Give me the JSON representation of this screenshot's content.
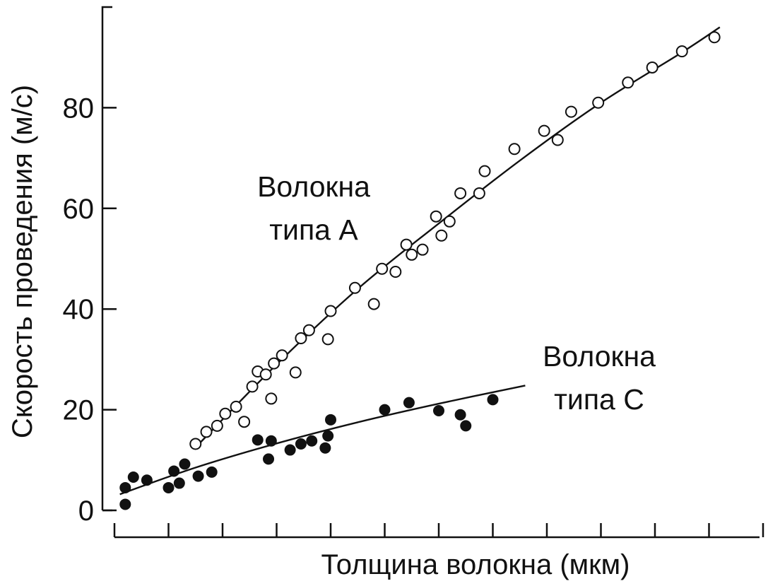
{
  "chart_data": {
    "type": "scatter",
    "title": "",
    "xlabel": "Толщина волокна (мкм)",
    "ylabel": "Скорость проведения (м/с)",
    "ylim": [
      0,
      100
    ],
    "xlim": [
      0,
      12
    ],
    "x_ticks_count": 12,
    "x_tick_labels_shown": false,
    "y_ticks": [
      0,
      20,
      40,
      60,
      80
    ],
    "y_tick_labels": [
      "0",
      "20",
      "40",
      "60",
      "80"
    ],
    "grid": false,
    "legend": "none",
    "annotations": [
      {
        "lines": [
          "Волокна",
          "типа А"
        ],
        "series": "A"
      },
      {
        "lines": [
          "Волокна",
          "типа С"
        ],
        "series": "C"
      }
    ],
    "series": [
      {
        "id": "A",
        "marker": "open-circle",
        "color": "#111111",
        "points": [
          [
            1.5,
            13.2
          ],
          [
            1.7,
            15.6
          ],
          [
            1.9,
            16.8
          ],
          [
            2.05,
            19.2
          ],
          [
            2.25,
            20.6
          ],
          [
            2.4,
            17.6
          ],
          [
            2.55,
            24.6
          ],
          [
            2.65,
            27.6
          ],
          [
            2.8,
            27.0
          ],
          [
            2.9,
            22.2
          ],
          [
            2.95,
            29.2
          ],
          [
            3.1,
            30.8
          ],
          [
            3.35,
            27.4
          ],
          [
            3.45,
            34.2
          ],
          [
            3.6,
            35.8
          ],
          [
            3.95,
            34.0
          ],
          [
            4.0,
            39.6
          ],
          [
            4.45,
            44.2
          ],
          [
            4.8,
            41.0
          ],
          [
            4.95,
            48.0
          ],
          [
            5.2,
            47.4
          ],
          [
            5.4,
            52.8
          ],
          [
            5.5,
            50.8
          ],
          [
            5.7,
            51.8
          ],
          [
            5.95,
            58.4
          ],
          [
            6.05,
            54.6
          ],
          [
            6.2,
            57.4
          ],
          [
            6.4,
            63.0
          ],
          [
            6.75,
            63.0
          ],
          [
            6.85,
            67.4
          ],
          [
            7.4,
            71.8
          ],
          [
            7.95,
            75.4
          ],
          [
            8.2,
            73.6
          ],
          [
            8.45,
            79.2
          ],
          [
            8.95,
            81.0
          ],
          [
            9.5,
            85.0
          ],
          [
            9.95,
            88.0
          ],
          [
            10.5,
            91.2
          ],
          [
            11.1,
            94.0
          ]
        ],
        "fit": [
          [
            1.5,
            12.5
          ],
          [
            3.0,
            29.0
          ],
          [
            4.5,
            44.0
          ],
          [
            6.0,
            57.0
          ],
          [
            7.5,
            69.5
          ],
          [
            9.0,
            81.0
          ],
          [
            10.5,
            91.0
          ],
          [
            11.2,
            96.0
          ]
        ]
      },
      {
        "id": "C",
        "marker": "filled-circle",
        "color": "#111111",
        "points": [
          [
            0.2,
            4.5
          ],
          [
            0.2,
            1.2
          ],
          [
            0.35,
            6.6
          ],
          [
            0.6,
            6.0
          ],
          [
            1.0,
            4.5
          ],
          [
            1.1,
            7.8
          ],
          [
            1.2,
            5.4
          ],
          [
            1.3,
            9.2
          ],
          [
            1.55,
            6.8
          ],
          [
            1.8,
            7.6
          ],
          [
            2.65,
            14.0
          ],
          [
            2.85,
            10.2
          ],
          [
            2.9,
            13.8
          ],
          [
            3.25,
            12.0
          ],
          [
            3.45,
            13.2
          ],
          [
            3.65,
            13.8
          ],
          [
            3.9,
            12.4
          ],
          [
            3.95,
            14.8
          ],
          [
            4.0,
            18.0
          ],
          [
            5.0,
            20.0
          ],
          [
            5.45,
            21.4
          ],
          [
            6.0,
            19.8
          ],
          [
            6.4,
            19.0
          ],
          [
            6.5,
            16.8
          ],
          [
            7.0,
            22.0
          ]
        ],
        "fit": [
          [
            0.1,
            3.2
          ],
          [
            1.5,
            8.5
          ],
          [
            3.0,
            13.3
          ],
          [
            4.5,
            17.5
          ],
          [
            6.0,
            21.2
          ],
          [
            7.6,
            24.8
          ]
        ]
      }
    ]
  }
}
